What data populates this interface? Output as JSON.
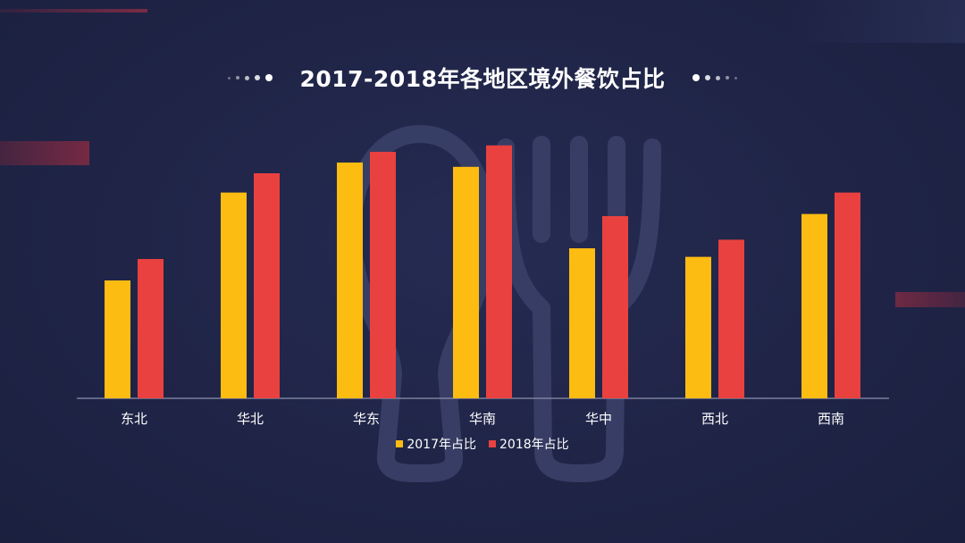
{
  "colors": {
    "background": "#1f2446",
    "series_2017": "#fdbc12",
    "series_2018": "#e9413f",
    "axis": "#8b90ad",
    "text": "#ffffff",
    "watermark": "#3a4068"
  },
  "background_icon": "fork-and-spoon-icon",
  "chart_data": {
    "type": "bar",
    "title": "2017-2018年各地区境外餐饮占比",
    "categories": [
      "东北",
      "华北",
      "华东",
      "华南",
      "华中",
      "西北",
      "西南"
    ],
    "series": [
      {
        "name": "2017年占比",
        "values": [
          5.5,
          9.6,
          11.0,
          10.8,
          7.0,
          6.6,
          8.6
        ]
      },
      {
        "name": "2018年占比",
        "values": [
          6.5,
          10.5,
          11.5,
          11.8,
          8.5,
          7.4,
          9.6
        ]
      }
    ],
    "ylim": [
      0,
      14
    ],
    "grid": false,
    "legend_position": "bottom",
    "xlabel": "",
    "ylabel": ""
  }
}
